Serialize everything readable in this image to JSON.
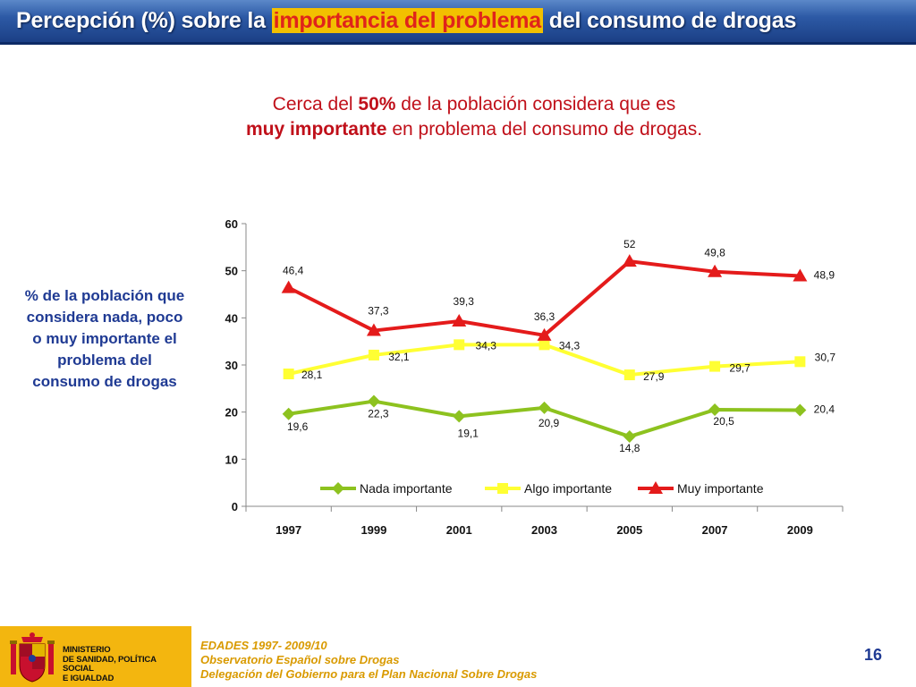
{
  "title": {
    "before": "Percepción (%) sobre la ",
    "highlight": "importancia del problema",
    "after": " del consumo de drogas"
  },
  "headline": {
    "line1_a": "Cerca del ",
    "line1_b": "50%",
    "line1_c": " de la población considera que es",
    "line2_a": "muy importante",
    "line2_b": " en problema del consumo de drogas."
  },
  "side_label": "% de la población que considera nada, poco o muy importante el problema del consumo de drogas",
  "chart_data": {
    "type": "line",
    "title": "",
    "xlabel": "",
    "ylabel": "",
    "categories": [
      "1997",
      "1999",
      "2001",
      "2003",
      "2005",
      "2007",
      "2009"
    ],
    "ylim": [
      0,
      60
    ],
    "yticks": [
      0,
      10,
      20,
      30,
      40,
      50,
      60
    ],
    "grid": false,
    "legend_position": "bottom-inside",
    "series": [
      {
        "name": "Nada importante",
        "color": "#8dc21f",
        "marker": "diamond",
        "values": [
          19.6,
          22.3,
          19.1,
          20.9,
          14.8,
          20.5,
          20.4
        ],
        "labels": [
          "19,6",
          "22,3",
          "19,1",
          "20,9",
          "14,8",
          "20,5",
          "20,4"
        ]
      },
      {
        "name": "Algo importante",
        "color": "#ffff33",
        "marker": "square",
        "values": [
          28.1,
          32.1,
          34.3,
          34.3,
          27.9,
          29.7,
          30.7
        ],
        "labels": [
          "28,1",
          "32,1",
          "34,3",
          "34,3",
          "27,9",
          "29,7",
          "30,7"
        ]
      },
      {
        "name": "Muy importante",
        "color": "#e41b1b",
        "marker": "triangle",
        "values": [
          46.4,
          37.3,
          39.3,
          36.3,
          52,
          49.8,
          48.9
        ],
        "labels": [
          "46,4",
          "37,3",
          "39,3",
          "36,3",
          "52",
          "49,8",
          "48,9"
        ]
      }
    ]
  },
  "footer": {
    "ministry": [
      "MINISTERIO",
      "DE SANIDAD, POLÍTICA SOCIAL",
      "E IGUALDAD"
    ],
    "lines": [
      "EDADES 1997- 2009/10",
      "Observatorio Español sobre Drogas",
      "Delegación del Gobierno para el Plan Nacional Sobre Drogas"
    ],
    "page_number": "16"
  }
}
